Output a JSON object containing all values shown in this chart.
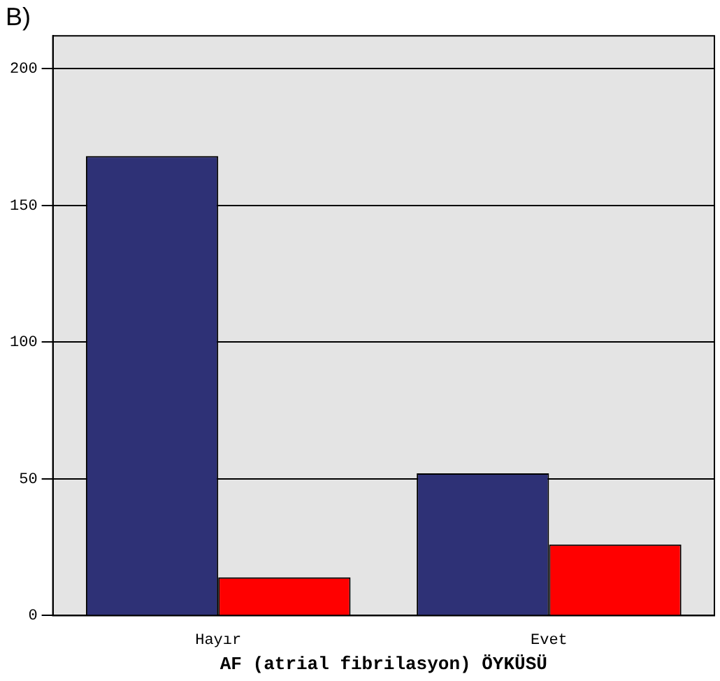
{
  "chart_data": {
    "type": "bar",
    "title": "B)",
    "xlabel": "AF (atrial fibrilasyon) ÖYKÜSÜ",
    "categories": [
      "Hayır",
      "Evet"
    ],
    "series": [
      {
        "color": "#2e3176",
        "values": [
          168,
          52
        ]
      },
      {
        "color": "#ff0000",
        "values": [
          14,
          26
        ]
      }
    ],
    "ylim": [
      0,
      212
    ],
    "yticks": [
      0,
      50,
      100,
      150,
      200
    ],
    "grid": "y",
    "legend": false
  }
}
